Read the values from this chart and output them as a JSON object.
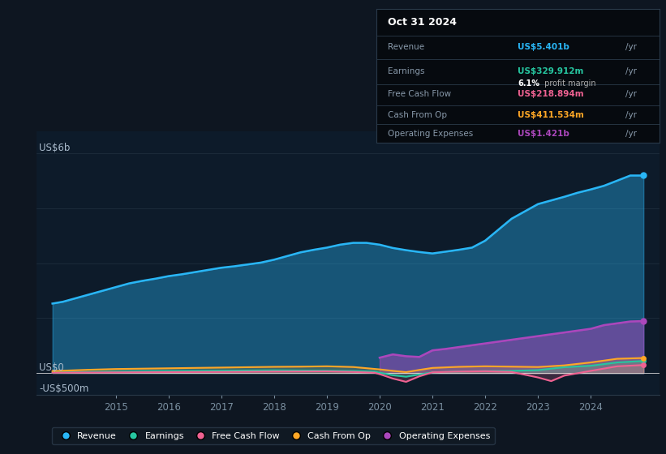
{
  "background_color": "#0e1621",
  "plot_bg_color": "#0d1b2a",
  "y_label_top": "US$6b",
  "y_label_zero": "US$0",
  "y_label_bottom": "-US$500m",
  "ylim": [
    -600,
    6600
  ],
  "xlim": [
    2013.5,
    2025.3
  ],
  "revenue_color": "#29b6f6",
  "earnings_color": "#26c6a0",
  "fcf_color": "#f06292",
  "cashfromop_color": "#ffa726",
  "opex_color": "#ab47bc",
  "grid_color": "#1e2d3d",
  "zero_line_color": "#e0e0e0",
  "tooltip": {
    "date": "Oct 31 2024",
    "revenue_label": "Revenue",
    "revenue_value": "US$5.401b",
    "revenue_color": "#29b6f6",
    "earnings_label": "Earnings",
    "earnings_value": "US$329.912m",
    "earnings_color": "#26c6a0",
    "margin_text": "6.1%",
    "margin_label": " profit margin",
    "fcf_label": "Free Cash Flow",
    "fcf_value": "US$218.894m",
    "fcf_color": "#f06292",
    "cashop_label": "Cash From Op",
    "cashop_value": "US$411.534m",
    "cashop_color": "#ffa726",
    "opex_label": "Operating Expenses",
    "opex_value": "US$1.421b",
    "opex_color": "#ab47bc"
  },
  "revenue_x": [
    2013.8,
    2014.0,
    2014.25,
    2014.5,
    2014.75,
    2015.0,
    2015.25,
    2015.5,
    2015.75,
    2016.0,
    2016.25,
    2016.5,
    2016.75,
    2017.0,
    2017.25,
    2017.5,
    2017.75,
    2018.0,
    2018.25,
    2018.5,
    2018.75,
    2019.0,
    2019.25,
    2019.5,
    2019.75,
    2020.0,
    2020.25,
    2020.5,
    2020.75,
    2021.0,
    2021.25,
    2021.5,
    2021.75,
    2022.0,
    2022.25,
    2022.5,
    2022.75,
    2023.0,
    2023.25,
    2023.5,
    2023.75,
    2024.0,
    2024.25,
    2024.5,
    2024.75,
    2025.0
  ],
  "revenue_y": [
    1900,
    1950,
    2050,
    2150,
    2250,
    2350,
    2450,
    2520,
    2580,
    2650,
    2700,
    2760,
    2820,
    2880,
    2920,
    2970,
    3020,
    3100,
    3200,
    3300,
    3370,
    3430,
    3510,
    3560,
    3560,
    3510,
    3420,
    3360,
    3310,
    3270,
    3320,
    3370,
    3430,
    3620,
    3920,
    4220,
    4420,
    4620,
    4720,
    4820,
    4930,
    5020,
    5120,
    5260,
    5401,
    5401
  ],
  "earnings_x": [
    2013.8,
    2014.0,
    2014.5,
    2015.0,
    2015.5,
    2016.0,
    2016.5,
    2017.0,
    2017.5,
    2018.0,
    2018.5,
    2019.0,
    2019.5,
    2019.9,
    2020.0,
    2020.25,
    2020.5,
    2020.75,
    2021.0,
    2021.25,
    2021.5,
    2021.75,
    2022.0,
    2022.5,
    2023.0,
    2023.5,
    2024.0,
    2024.5,
    2025.0
  ],
  "earnings_y": [
    15,
    20,
    30,
    40,
    50,
    55,
    60,
    65,
    70,
    75,
    70,
    65,
    55,
    40,
    10,
    -60,
    -100,
    -40,
    20,
    30,
    40,
    50,
    55,
    60,
    80,
    160,
    200,
    290,
    330
  ],
  "fcf_x": [
    2013.8,
    2014.5,
    2015.0,
    2015.5,
    2016.0,
    2016.5,
    2017.0,
    2017.5,
    2018.0,
    2018.5,
    2019.0,
    2019.5,
    2019.9,
    2020.0,
    2020.25,
    2020.5,
    2020.75,
    2021.0,
    2021.5,
    2022.0,
    2022.5,
    2023.0,
    2023.25,
    2023.5,
    2024.0,
    2024.5,
    2025.0
  ],
  "fcf_y": [
    10,
    15,
    18,
    22,
    25,
    28,
    30,
    35,
    40,
    42,
    45,
    30,
    10,
    -30,
    -150,
    -240,
    -90,
    20,
    40,
    50,
    30,
    -120,
    -220,
    -70,
    60,
    185,
    219
  ],
  "cashfromop_x": [
    2013.8,
    2014.5,
    2015.0,
    2015.5,
    2016.0,
    2016.5,
    2017.0,
    2017.5,
    2018.0,
    2018.5,
    2019.0,
    2019.5,
    2020.0,
    2020.25,
    2020.5,
    2020.75,
    2021.0,
    2021.5,
    2022.0,
    2022.5,
    2023.0,
    2023.5,
    2024.0,
    2024.5,
    2025.0
  ],
  "cashfromop_y": [
    55,
    90,
    110,
    120,
    130,
    140,
    150,
    160,
    170,
    175,
    185,
    165,
    100,
    60,
    25,
    85,
    140,
    170,
    185,
    175,
    165,
    210,
    290,
    390,
    412
  ],
  "opex_x": [
    2020.0,
    2020.25,
    2020.5,
    2020.75,
    2021.0,
    2021.25,
    2021.5,
    2021.75,
    2022.0,
    2022.25,
    2022.5,
    2022.75,
    2023.0,
    2023.25,
    2023.5,
    2023.75,
    2024.0,
    2024.25,
    2024.5,
    2024.75,
    2025.0
  ],
  "opex_y": [
    420,
    510,
    460,
    440,
    620,
    660,
    710,
    760,
    810,
    860,
    910,
    960,
    1010,
    1060,
    1110,
    1160,
    1210,
    1310,
    1360,
    1410,
    1421
  ]
}
